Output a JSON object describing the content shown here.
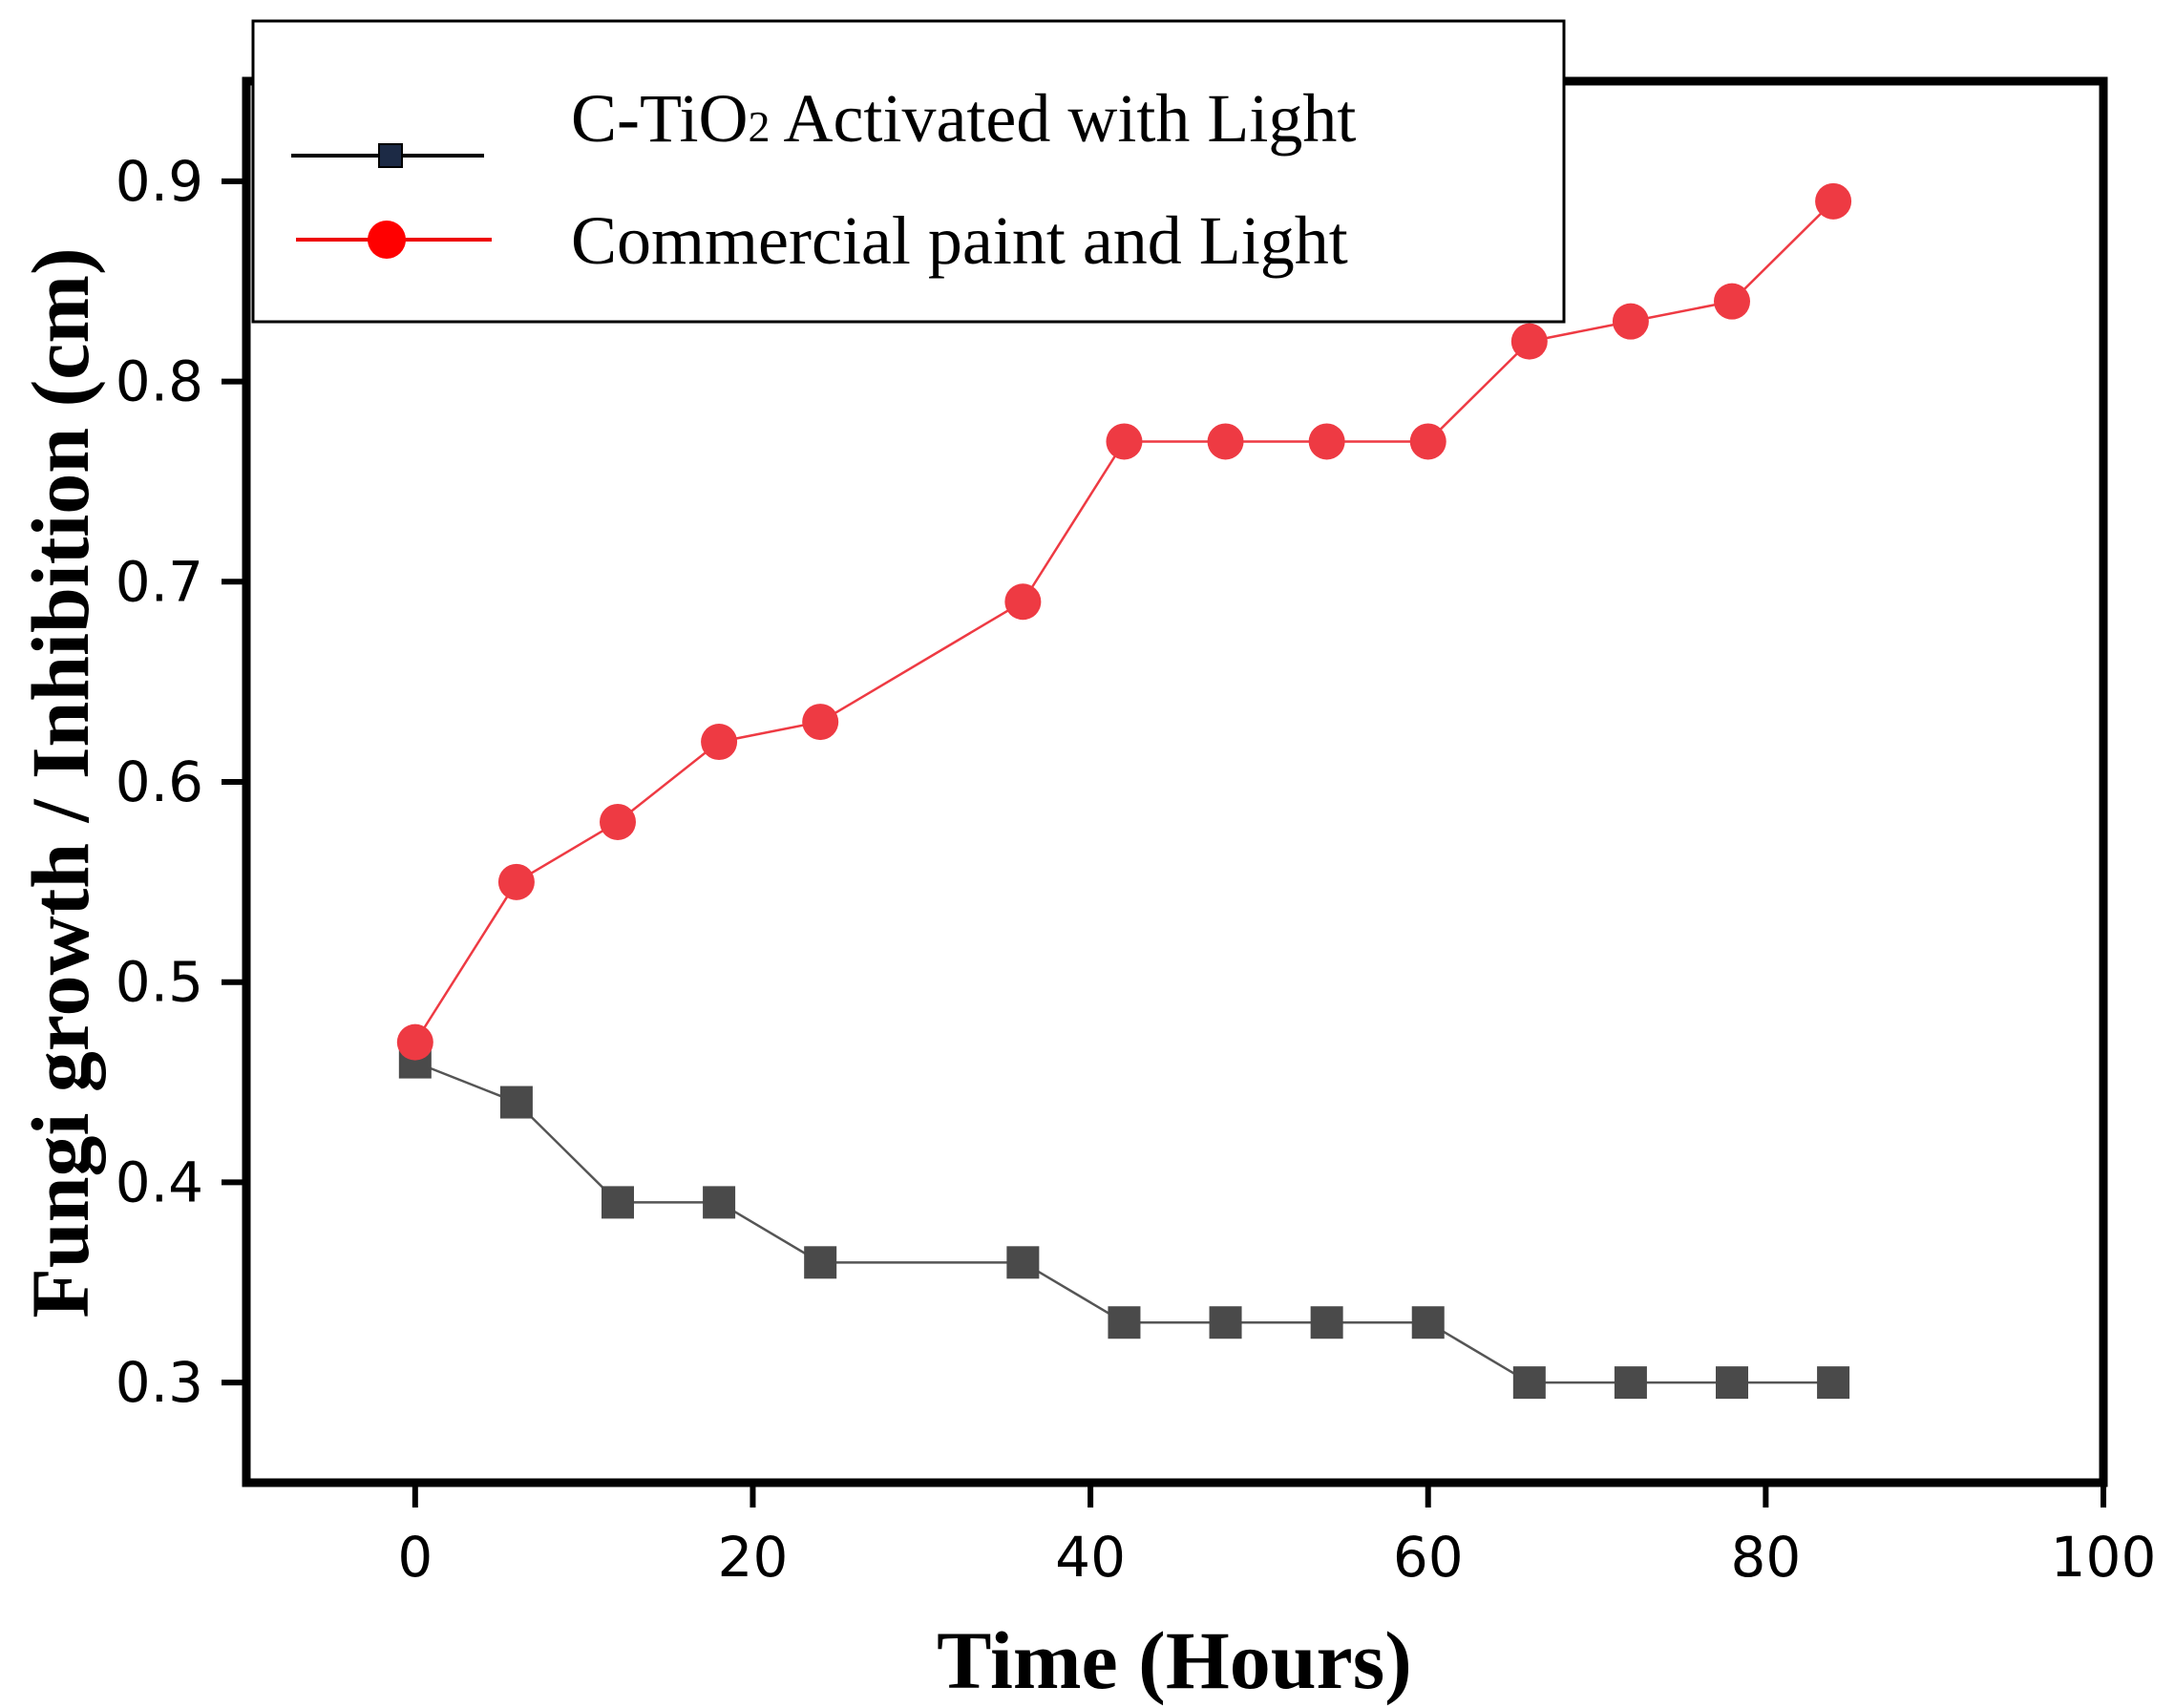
{
  "chart_data": {
    "type": "line",
    "title": "",
    "xlabel": "Time (Hours)",
    "ylabel": "Fungi growth / Inhibition (cm)",
    "xlim": [
      -10,
      100
    ],
    "ylim": [
      0.25,
      0.95
    ],
    "xticks": [
      0,
      20,
      40,
      60,
      80,
      100
    ],
    "yticks": [
      0.3,
      0.4,
      0.5,
      0.6,
      0.7,
      0.8,
      0.9
    ],
    "xtick_labels": [
      "0",
      "20",
      "40",
      "60",
      "80",
      "100"
    ],
    "ytick_labels": [
      "0.3",
      "0.4",
      "0.5",
      "0.6",
      "0.7",
      "0.8",
      "0.9"
    ],
    "grid": false,
    "legend_position": "top-left",
    "series": [
      {
        "name": "C-TiO2 Activated with Light",
        "legend_main": "C-TiO",
        "legend_sub": "2",
        "legend_rest": " Activated with Light",
        "marker": "square",
        "color": "#4a4a4a",
        "line_color": "#555555",
        "x": [
          0,
          6,
          12,
          18,
          24,
          36,
          42,
          48,
          54,
          60,
          66,
          72,
          78,
          84
        ],
        "values": [
          0.46,
          0.44,
          0.39,
          0.39,
          0.36,
          0.36,
          0.33,
          0.33,
          0.33,
          0.33,
          0.3,
          0.3,
          0.3,
          0.3
        ]
      },
      {
        "name": "Commercial paint and Light",
        "legend_label": "Commercial paint and Light",
        "marker": "circle",
        "color": "#ee3a43",
        "line_color": "#ee3a43",
        "x": [
          0,
          6,
          12,
          18,
          24,
          36,
          42,
          48,
          54,
          60,
          66,
          72,
          78,
          84
        ],
        "values": [
          0.47,
          0.55,
          0.58,
          0.62,
          0.63,
          0.69,
          0.77,
          0.77,
          0.77,
          0.77,
          0.82,
          0.83,
          0.84,
          0.89
        ]
      }
    ]
  }
}
